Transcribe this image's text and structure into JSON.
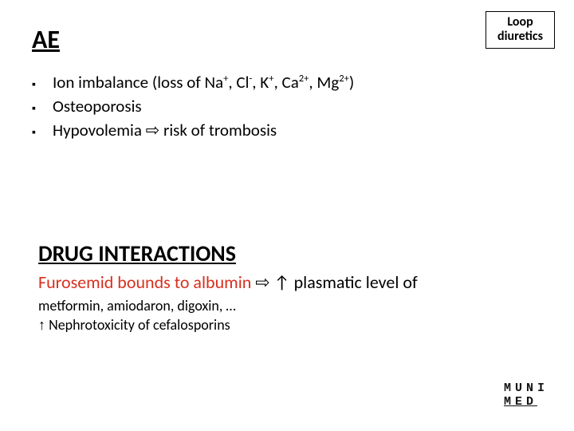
{
  "label_box": {
    "line1": "Loop",
    "line2": "diuretics",
    "border_color": "#000000",
    "font_weight": 700
  },
  "ae_heading": "AE",
  "colors": {
    "text": "#000000",
    "highlight_red": "#d7301f",
    "background": "#ffffff"
  },
  "font": {
    "body_size_pt": 21,
    "heading_ae_pt": 32,
    "heading_di_pt": 28,
    "sub_pt": 18
  },
  "bullets": [
    {
      "prefix": "Ion imbalance (loss of ",
      "ions": [
        {
          "sym": "Na",
          "sup": "+"
        },
        {
          "sym": "Cl",
          "sup": "-"
        },
        {
          "sym": "K",
          "sup": "+"
        },
        {
          "sym": "Ca",
          "sup": "2+"
        },
        {
          "sym": "Mg",
          "sup": "2+"
        }
      ],
      "suffix": ")"
    },
    {
      "prefix": "Osteoporosis",
      "ions": [],
      "suffix": ""
    },
    {
      "prefix": "Hypovolemia  ",
      "arrow": "⇨",
      "after_arrow": " risk of trombosis",
      "ions": [],
      "suffix": ""
    }
  ],
  "di_heading": "DRUG INTERACTIONS",
  "di_line": {
    "red_part": "Furosemid bounds to albumin ",
    "arrow": "⇨",
    "black_part": " ↑ plasmatic level of"
  },
  "di_sub": "metformin, amiodaron, digoxin, …",
  "di_sub2_arrow": "↑",
  "di_sub2_text": "  Nephrotoxicity of cefalosporins",
  "logo": {
    "row1": "MUNI",
    "row2": "MED"
  }
}
